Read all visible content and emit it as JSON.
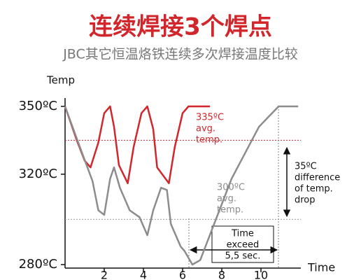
{
  "chart_data": {
    "type": "line",
    "title": "连续焊接3个焊点",
    "subtitle": "JBC其它恒温烙铁连续多次焊接温度比较",
    "y_label": "Temp",
    "x_label": "Time",
    "xlim": [
      0,
      12
    ],
    "xticks": [
      2,
      4,
      6,
      8,
      10
    ],
    "ylim": [
      280,
      350
    ],
    "yticks": [
      {
        "value": 350,
        "label": "350ºC"
      },
      {
        "value": 320,
        "label": "320ºC"
      },
      {
        "value": 280,
        "label": "280ºC"
      }
    ],
    "series": [
      {
        "name": [
          "335ºC",
          "avg.",
          "temp."
        ],
        "color": "#d0262c",
        "x": [
          0,
          0.6,
          1.0,
          1.3,
          1.7,
          2.0,
          2.3,
          2.5,
          2.75,
          3.2,
          3.5,
          3.9,
          4.2,
          4.5,
          4.7,
          5.3,
          5.6,
          6.0,
          6.3,
          7.4
        ],
        "values": [
          350,
          335,
          326,
          323,
          334,
          347,
          350,
          341,
          324,
          316,
          332,
          347,
          350,
          340,
          323,
          316,
          332,
          347,
          350,
          350
        ]
      },
      {
        "name": [
          "300ºC",
          "avg.",
          "temp."
        ],
        "color": "#8c8c8c",
        "x": [
          0,
          0.8,
          1.4,
          1.7,
          2.0,
          2.3,
          2.5,
          2.8,
          3.3,
          3.8,
          4.2,
          4.5,
          4.9,
          5.2,
          5.4,
          5.9,
          6.1,
          6.5,
          6.9,
          8.5,
          9.9,
          10.9,
          11.9
        ],
        "values": [
          350,
          331,
          317,
          304,
          302,
          318,
          323,
          314,
          304,
          301,
          293,
          304,
          314,
          313,
          298,
          288,
          286,
          280,
          282,
          318,
          341,
          350,
          350
        ]
      }
    ],
    "reference_lines": [
      {
        "value": 335,
        "color": "#d0262c"
      },
      {
        "value": 300,
        "color": "#999999"
      }
    ],
    "annotations": {
      "difference": [
        "35ºC",
        "difference",
        "of temp.",
        "drop"
      ],
      "time": [
        "Time",
        "exceed",
        "5,5 sec."
      ]
    }
  }
}
